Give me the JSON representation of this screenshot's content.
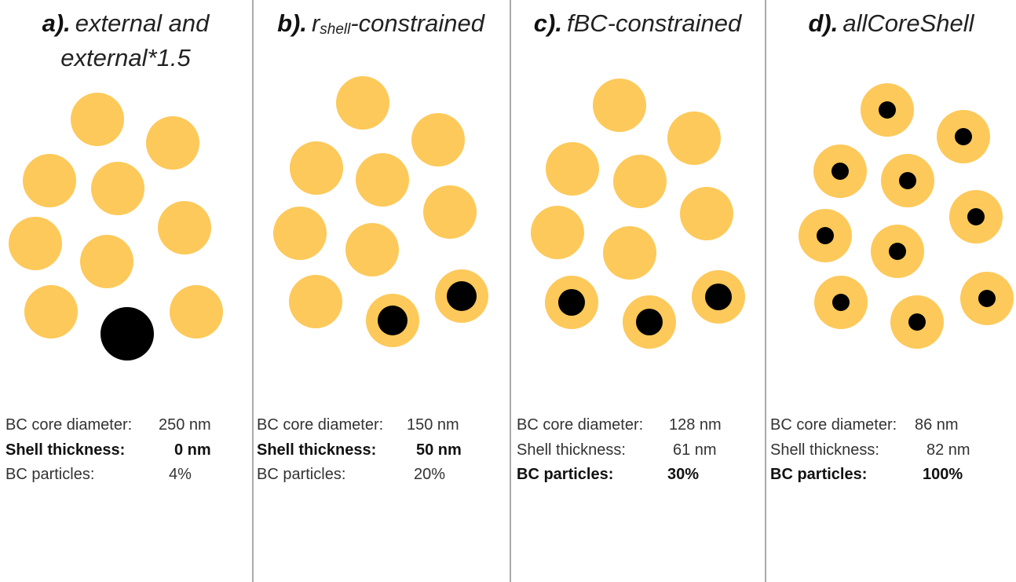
{
  "panels": [
    {
      "label": "a).",
      "title": "external and external*1.5",
      "stats": [
        [
          "BC core diameter:",
          "250 nm"
        ],
        [
          "Shell thickness:",
          "0 nm"
        ],
        [
          "BC particles:",
          "4%"
        ]
      ]
    },
    {
      "label": "b).",
      "title_main": "r",
      "title_sub": "shell",
      "title_rest": "-constrained",
      "stats": [
        [
          "BC core diameter:",
          "150 nm"
        ],
        [
          "Shell thickness:",
          "50 nm"
        ],
        [
          "BC particles:",
          "20%"
        ]
      ]
    },
    {
      "label": "c).",
      "title": "fBC-constrained",
      "stats": [
        [
          "BC core diameter:",
          "128 nm"
        ],
        [
          "Shell thickness:",
          "61 nm"
        ],
        [
          "BC particles:",
          "30%"
        ]
      ]
    },
    {
      "label": "d).",
      "title": "allCoreShell",
      "stats": [
        [
          "BC core diameter:",
          "86 nm"
        ],
        [
          "Shell thickness:",
          "82 nm"
        ],
        [
          "BC particles:",
          "100%"
        ]
      ]
    }
  ]
}
